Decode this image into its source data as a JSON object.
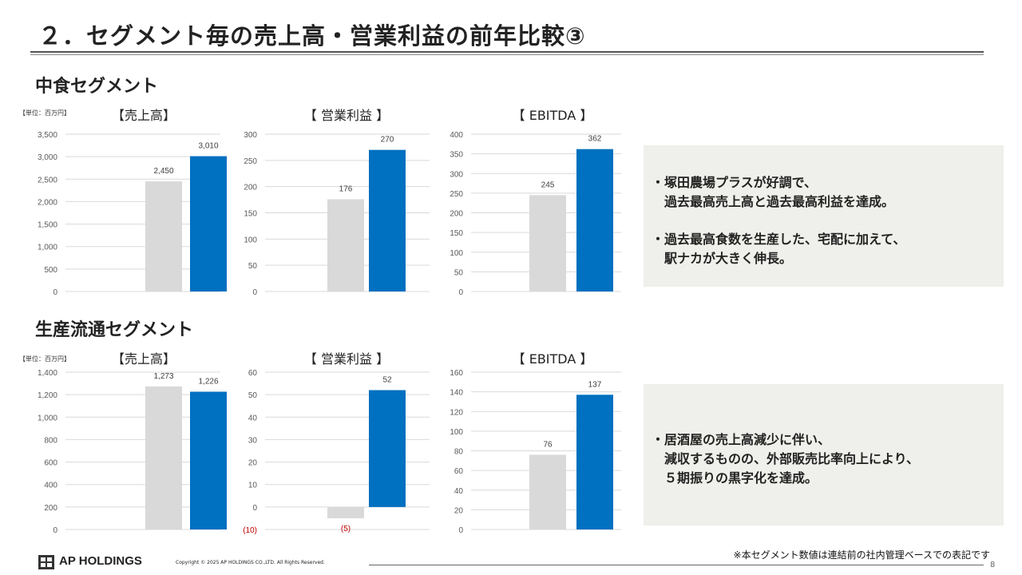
{
  "page": {
    "title": "２．セグメント毎の売上高・営業利益の前年比較③",
    "footnote": "※本セグメント数値は連結前の社内管理ベースでの表記です",
    "brand": "AP HOLDINGS",
    "copyright": "Copyright © 2025 AP HOLDINGS CO.,LTD.  All Rights Reserved.",
    "page_number": "8"
  },
  "colors": {
    "prev": "#d9d9d9",
    "curr": "#0070c0",
    "negative_label": "#c00000"
  },
  "sections": [
    {
      "title": "中食セグメント",
      "unit": "【単位：百万円】",
      "notes": [
        "・塚田農場プラスが好調で、",
        "　過去最高売上高と過去最高利益を達成。",
        "",
        "・過去最高食数を生産した、宅配に加えて、",
        "　駅ナカが大きく伸長。"
      ]
    },
    {
      "title": "生産流通セグメント",
      "unit": "【単位：百万円】",
      "notes": [
        "・居酒屋の売上高減少に伴い、",
        "　減収するものの、外部販売比率向上により、",
        "　５期振りの黒字化を達成。"
      ]
    }
  ],
  "chart_data": [
    {
      "type": "bar",
      "title": "【売上高】",
      "values": [
        2450,
        3010
      ],
      "labels": [
        "2,450",
        "3,010"
      ],
      "ylim": [
        0,
        3500
      ],
      "ticks": [
        "0",
        "500",
        "1,000",
        "1,500",
        "2,000",
        "2,500",
        "3,000",
        "3,500"
      ],
      "grid": true
    },
    {
      "type": "bar",
      "title": "【 営業利益 】",
      "values": [
        176,
        270
      ],
      "labels": [
        "176",
        "270"
      ],
      "ylim": [
        0,
        300
      ],
      "ticks": [
        "0",
        "50",
        "100",
        "150",
        "200",
        "250",
        "300"
      ],
      "grid": true
    },
    {
      "type": "bar",
      "title": "【 EBITDA 】",
      "values": [
        245,
        362
      ],
      "labels": [
        "245",
        "362"
      ],
      "ylim": [
        0,
        400
      ],
      "ticks": [
        "0",
        "50",
        "100",
        "150",
        "200",
        "250",
        "300",
        "350",
        "400"
      ],
      "grid": true
    },
    {
      "type": "bar",
      "title": "【売上高】",
      "values": [
        1273,
        1226
      ],
      "labels": [
        "1,273",
        "1,226"
      ],
      "ylim": [
        0,
        1400
      ],
      "ticks": [
        "0",
        "200",
        "400",
        "600",
        "800",
        "1,000",
        "1,200",
        "1,400"
      ],
      "grid": true
    },
    {
      "type": "bar",
      "title": "【 営業利益 】",
      "values": [
        -5,
        52
      ],
      "labels": [
        "(5)",
        "52"
      ],
      "ylim": [
        -10,
        60
      ],
      "ticks": [
        "(10)",
        "0",
        "10",
        "20",
        "30",
        "40",
        "50",
        "60"
      ],
      "grid": true
    },
    {
      "type": "bar",
      "title": "【 EBITDA 】",
      "values": [
        76,
        137
      ],
      "labels": [
        "76",
        "137"
      ],
      "ylim": [
        0,
        160
      ],
      "ticks": [
        "0",
        "20",
        "40",
        "60",
        "80",
        "100",
        "120",
        "140",
        "160"
      ],
      "grid": true
    }
  ]
}
